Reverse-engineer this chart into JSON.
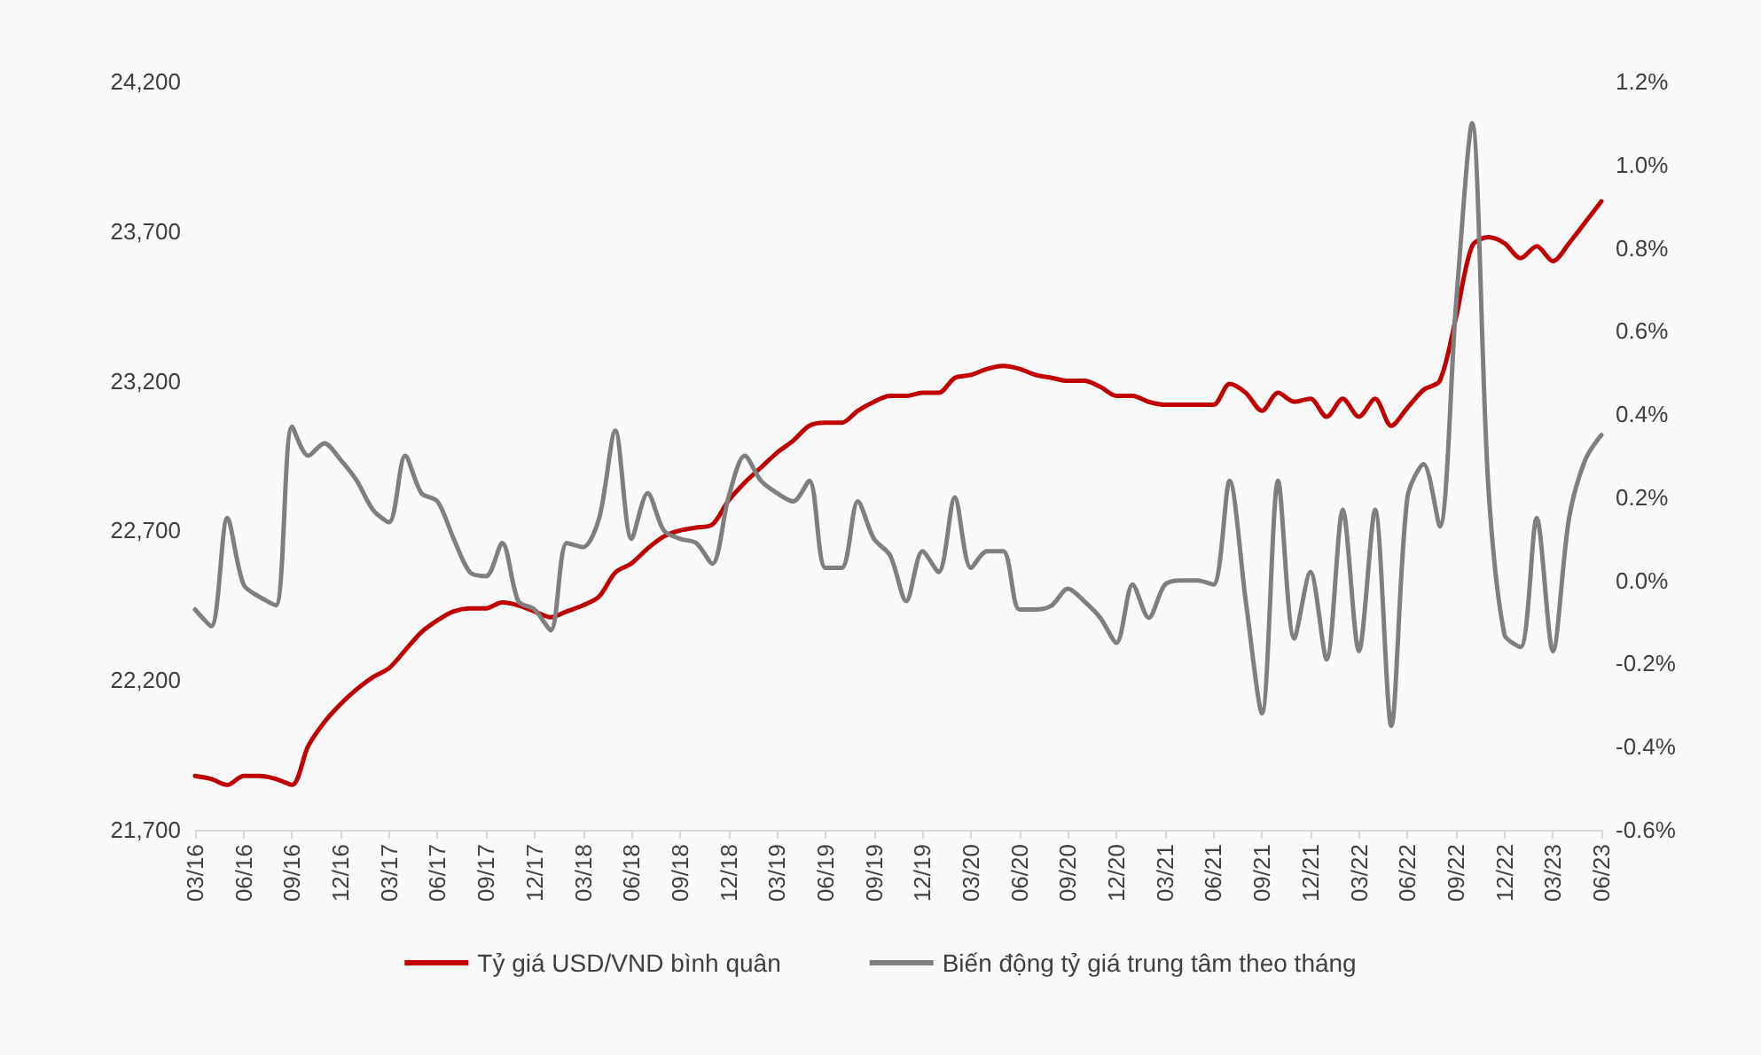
{
  "chart_data": {
    "type": "line",
    "categories": [
      "03/16",
      null,
      null,
      "06/16",
      null,
      null,
      "09/16",
      null,
      null,
      "12/16",
      null,
      null,
      "03/17",
      null,
      null,
      "06/17",
      null,
      null,
      "09/17",
      null,
      null,
      "12/17",
      null,
      null,
      "03/18",
      null,
      null,
      "06/18",
      null,
      null,
      "09/18",
      null,
      null,
      "12/18",
      null,
      null,
      "03/19",
      null,
      null,
      "06/19",
      null,
      null,
      "09/19",
      null,
      null,
      "12/19",
      null,
      null,
      "03/20",
      null,
      null,
      "06/20",
      null,
      null,
      "09/20",
      null,
      null,
      "12/20",
      null,
      null,
      "03/21",
      null,
      null,
      "06/21",
      null,
      null,
      "09/21",
      null,
      null,
      "12/21",
      null,
      null,
      "03/22",
      null,
      null,
      "06/22",
      null,
      null,
      "09/22",
      null,
      null,
      "12/22",
      null,
      null,
      "03/23",
      null,
      null,
      "06/23"
    ],
    "series": [
      {
        "name": "Tỷ giá USD/VND bình quân",
        "color": "#c00000",
        "values": [
          21880,
          21870,
          21850,
          21880,
          21880,
          21870,
          21850,
          21980,
          22060,
          22120,
          22170,
          22210,
          22240,
          22300,
          22360,
          22400,
          22430,
          22440,
          22440,
          22460,
          22450,
          22430,
          22410,
          22430,
          22450,
          22480,
          22560,
          22590,
          22640,
          22680,
          22700,
          22710,
          22720,
          22800,
          22860,
          22910,
          22960,
          23000,
          23050,
          23060,
          23060,
          23100,
          23130,
          23150,
          23150,
          23160,
          23160,
          23210,
          23220,
          23240,
          23250,
          23240,
          23220,
          23210,
          23200,
          23200,
          23180,
          23150,
          23150,
          23130,
          23120,
          23120,
          23120,
          23120,
          23190,
          23160,
          23100,
          23160,
          23130,
          23140,
          23080,
          23140,
          23080,
          23140,
          23050,
          23110,
          23170,
          23200,
          23410,
          23650,
          23680,
          23660,
          23610,
          23650,
          23600,
          23660,
          23730,
          23800
        ]
      },
      {
        "name": "Biến động tỷ giá trung tâm theo tháng",
        "color": "#7f7f7f",
        "axis": "y2",
        "values": [
          -0.07,
          -0.11,
          0.15,
          -0.01,
          -0.04,
          -0.06,
          0.37,
          0.3,
          0.33,
          0.29,
          0.24,
          0.17,
          0.14,
          0.3,
          0.21,
          0.19,
          0.1,
          0.02,
          0.01,
          0.09,
          -0.05,
          -0.07,
          -0.12,
          0.09,
          0.08,
          0.15,
          0.36,
          0.1,
          0.21,
          0.12,
          0.1,
          0.09,
          0.04,
          0.2,
          0.3,
          0.24,
          0.21,
          0.19,
          0.24,
          0.03,
          0.03,
          0.19,
          0.1,
          0.06,
          -0.05,
          0.07,
          0.02,
          0.2,
          0.03,
          0.07,
          0.07,
          -0.07,
          -0.07,
          -0.06,
          -0.02,
          -0.05,
          -0.09,
          -0.15,
          -0.01,
          -0.09,
          -0.01,
          0.0,
          0.0,
          -0.01,
          0.24,
          -0.05,
          -0.32,
          0.24,
          -0.14,
          0.02,
          -0.19,
          0.17,
          -0.17,
          0.17,
          -0.35,
          0.2,
          0.28,
          0.13,
          0.66,
          1.1,
          0.23,
          -0.13,
          -0.16,
          0.15,
          -0.17,
          0.15,
          0.29,
          0.35
        ]
      }
    ],
    "ylim": [
      21700,
      24200
    ],
    "yticks": [
      {
        "value": 21700,
        "label": "21,700"
      },
      {
        "value": 22200,
        "label": "22,200"
      },
      {
        "value": 22700,
        "label": "22,700"
      },
      {
        "value": 23200,
        "label": "23,200"
      },
      {
        "value": 23700,
        "label": "23,700"
      },
      {
        "value": 24200,
        "label": "24,200"
      }
    ],
    "y2lim": [
      -0.6,
      1.2
    ],
    "y2ticks": [
      {
        "value": -0.6,
        "label": "-0.6%"
      },
      {
        "value": -0.4,
        "label": "-0.4%"
      },
      {
        "value": -0.2,
        "label": "-0.2%"
      },
      {
        "value": 0,
        "label": "0.0%"
      },
      {
        "value": 0.2,
        "label": "0.2%"
      },
      {
        "value": 0.4,
        "label": "0.4%"
      },
      {
        "value": 0.6,
        "label": "0.6%"
      },
      {
        "value": 0.8,
        "label": "0.8%"
      },
      {
        "value": 1.0,
        "label": "1.0%"
      },
      {
        "value": 1.2,
        "label": "1.2%"
      }
    ],
    "legend": "bottom",
    "grid": false,
    "marker": "none",
    "line_style": "solid"
  }
}
